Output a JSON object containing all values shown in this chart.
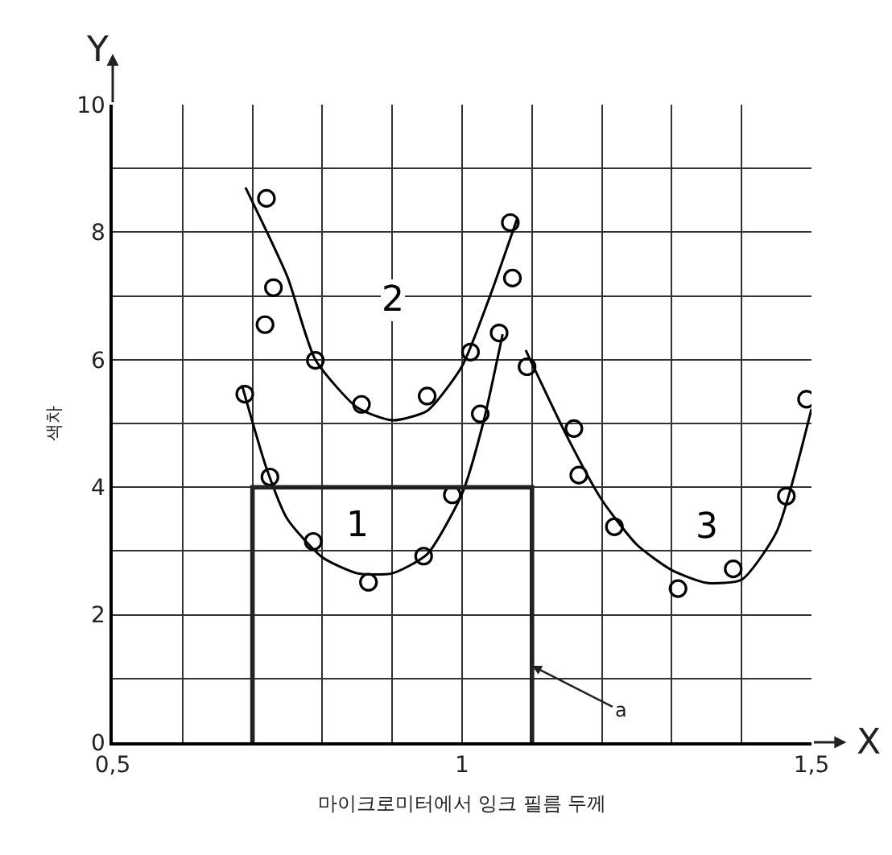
{
  "chart_data": {
    "type": "line",
    "xlabel": "마이크로미터에서 잉크 필름 두께",
    "ylabel": "색차",
    "xlim": [
      0.5,
      1.5
    ],
    "ylim": [
      0,
      10
    ],
    "xticks": [
      {
        "value": 0.5,
        "label": "0,5"
      },
      {
        "value": 0.6,
        "label": null
      },
      {
        "value": 0.7,
        "label": null
      },
      {
        "value": 0.8,
        "label": null
      },
      {
        "value": 0.9,
        "label": null
      },
      1,
      {
        "value": 1.1,
        "label": null
      },
      {
        "value": 1.2,
        "label": null
      },
      {
        "value": 1.3,
        "label": null
      },
      {
        "value": 1.4,
        "label": null
      },
      {
        "value": 1.5,
        "label": "1,5"
      }
    ],
    "yticks": [
      0,
      {
        "value": 1,
        "label": null
      },
      2,
      {
        "value": 3,
        "label": null
      },
      4,
      {
        "value": 5,
        "label": null
      },
      6,
      {
        "value": 7,
        "label": null
      },
      8,
      {
        "value": 9,
        "label": null
      },
      10
    ],
    "grid": true,
    "legend": false,
    "series": [
      {
        "type": "scatter",
        "marker": "circle",
        "color": "#000000",
        "x": [
          0.689,
          0.718,
          0.725,
          0.787,
          0.866,
          0.945,
          0.986,
          1.026,
          1.053
        ],
        "values": [
          5.46,
          6.55,
          4.16,
          3.15,
          2.51,
          2.92,
          3.88,
          5.15,
          6.42
        ]
      },
      {
        "type": "scatter",
        "marker": "circle",
        "color": "#000000",
        "x": [
          0.72,
          0.73,
          0.79,
          0.856,
          0.95,
          1.012,
          1.069,
          1.072
        ],
        "values": [
          8.53,
          7.13,
          5.99,
          5.3,
          5.43,
          6.12,
          8.15,
          7.28
        ]
      },
      {
        "type": "scatter",
        "marker": "circle",
        "color": "#000000",
        "x": [
          1.093,
          1.16,
          1.167,
          1.218,
          1.309,
          1.388,
          1.464,
          1.493
        ],
        "values": [
          5.89,
          4.92,
          4.19,
          3.38,
          2.41,
          2.72,
          3.86,
          5.38
        ]
      },
      {
        "name": "1",
        "color": "#000000",
        "x": [
          0.685,
          0.72,
          0.75,
          0.8,
          0.85,
          0.9,
          0.95,
          1.0,
          1.03,
          1.058
        ],
        "values": [
          5.6,
          4.3,
          3.5,
          2.9,
          2.65,
          2.65,
          2.95,
          3.9,
          5.0,
          6.4
        ]
      },
      {
        "name": "2",
        "color": "#000000",
        "x": [
          0.69,
          0.75,
          0.79,
          0.85,
          0.9,
          0.95,
          1.0,
          1.04,
          1.079
        ],
        "values": [
          8.7,
          7.3,
          6.0,
          5.25,
          5.05,
          5.2,
          5.9,
          7.0,
          8.22
        ]
      },
      {
        "name": "3",
        "color": "#000000",
        "x": [
          1.091,
          1.15,
          1.2,
          1.25,
          1.3,
          1.35,
          1.4,
          1.45,
          1.5
        ],
        "values": [
          6.15,
          4.8,
          3.8,
          3.1,
          2.7,
          2.5,
          2.55,
          3.3,
          5.23
        ]
      },
      {
        "color": "#222222",
        "x": [
          0.7,
          0.7,
          1.1,
          1.1
        ],
        "values": [
          0,
          4,
          4,
          0
        ]
      }
    ],
    "annotations": [
      "X",
      "Y",
      {
        "text": "a",
        "x": 1.1,
        "y": 1.2
      }
    ]
  }
}
